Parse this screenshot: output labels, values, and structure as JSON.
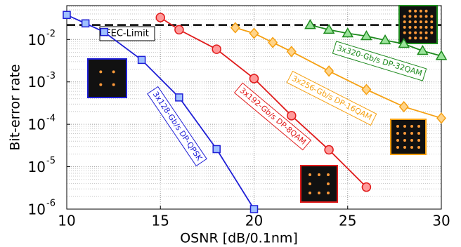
{
  "chart_data": {
    "type": "line",
    "log_y": true,
    "grid": true,
    "xlabel": "OSNR [dB/0.1nm]",
    "ylabel": "Bit-error rate",
    "xlim": [
      10,
      30
    ],
    "xticks": [
      10,
      15,
      20,
      25,
      30
    ],
    "ylim": [
      1e-06,
      0.063
    ],
    "yticks": [
      {
        "value": 0.01,
        "label": "10",
        "exponent": "-2"
      },
      {
        "value": 0.001,
        "label": "10",
        "exponent": "-3"
      },
      {
        "value": 0.0001,
        "label": "10",
        "exponent": "-4"
      },
      {
        "value": 1e-05,
        "label": "10",
        "exponent": "-5"
      },
      {
        "value": 1e-06,
        "label": "10",
        "exponent": "-6"
      }
    ],
    "fec_limit": {
      "label": "FEC-Limit",
      "value": 0.022
    },
    "series": [
      {
        "name": "3x128-Gb/s DP-QPSK",
        "color": "#1f1fd6",
        "marker": "square",
        "x": [
          10,
          11,
          12,
          14,
          16,
          18,
          20
        ],
        "values": [
          0.038,
          0.024,
          0.015,
          0.0033,
          0.00043,
          2.6e-05,
          1e-06
        ]
      },
      {
        "name": "3x192-Gb/s DP-8QAM",
        "color": "#e01b1b",
        "marker": "circle",
        "x": [
          15,
          16,
          18,
          20,
          22,
          24,
          26
        ],
        "values": [
          0.033,
          0.017,
          0.0059,
          0.0012,
          0.00016,
          2.5e-05,
          3.3e-06
        ]
      },
      {
        "name": "3x256-Gb/s DP-16QAM",
        "color": "#f5a012",
        "marker": "diamond",
        "x": [
          19,
          20,
          21,
          22,
          24,
          26,
          28,
          30
        ],
        "values": [
          0.019,
          0.014,
          0.0085,
          0.0052,
          0.0018,
          0.00066,
          0.00026,
          0.00014
        ]
      },
      {
        "name": "3x320-Gb/s DP-32QAM",
        "color": "#1e8a1e",
        "marker": "triangle",
        "x": [
          23,
          24,
          25,
          26,
          27,
          28,
          29,
          30
        ],
        "values": [
          0.022,
          0.017,
          0.014,
          0.012,
          0.0096,
          0.0079,
          0.0054,
          0.0041
        ]
      }
    ]
  }
}
